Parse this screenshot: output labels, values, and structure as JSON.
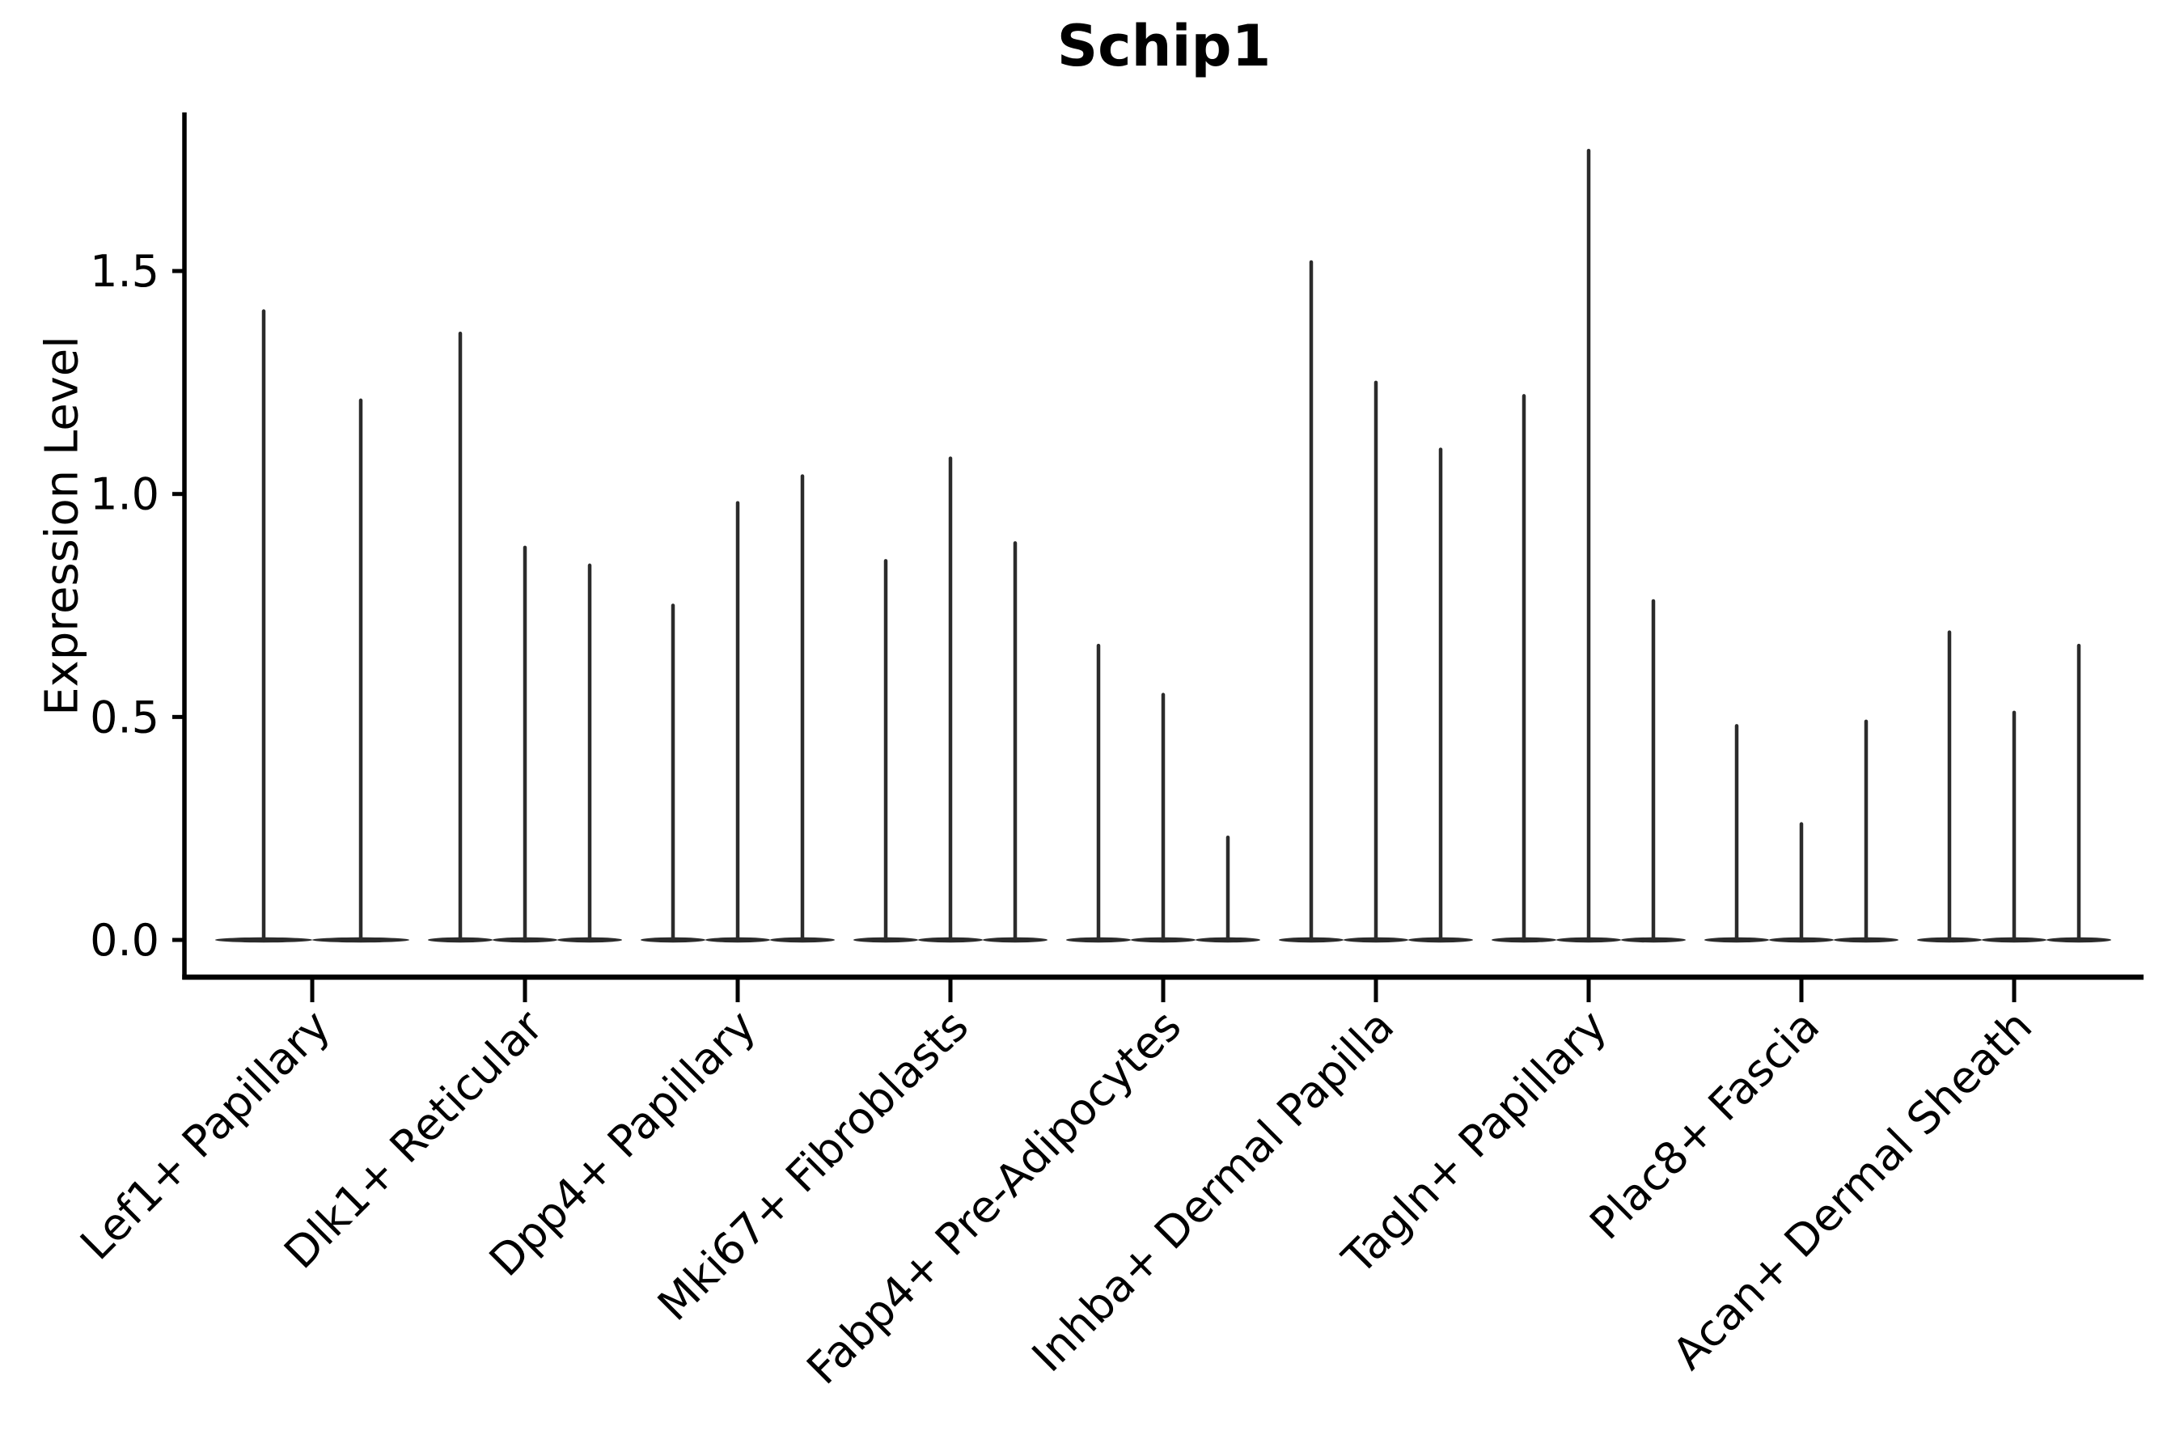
{
  "page": {
    "background": "#ffffff"
  },
  "title": "Schip1",
  "ylabel": "Expression Level",
  "chart_data": {
    "type": "violin",
    "title": "Schip1",
    "xlabel": "",
    "ylabel": "Expression Level",
    "ylim": [
      0,
      1.86
    ],
    "yticks": [
      0.0,
      0.5,
      1.0,
      1.5
    ],
    "x_tick_rotation": 45,
    "grid": false,
    "legend": "none",
    "violin_color": "#2b2b2b",
    "axis_color": "#000000",
    "background": "#ffffff",
    "categories": [
      "Lef1+ Papillary",
      "Dlk1+ Reticular",
      "Dpp4+ Papillary",
      "Mki67+ Fibroblasts",
      "Fabp4+ Pre-Adipocytes",
      "Inhba+ Dermal Papilla",
      "Tagln+ Papillary",
      "Plac8+ Fascia",
      "Acan+ Dermal Sheath"
    ],
    "series": [
      {
        "name": "Lef1+ Papillary",
        "peaks": [
          1.41,
          1.21
        ]
      },
      {
        "name": "Dlk1+ Reticular",
        "peaks": [
          1.36,
          0.88,
          0.84
        ]
      },
      {
        "name": "Dpp4+ Papillary",
        "peaks": [
          0.75,
          0.98,
          1.04
        ]
      },
      {
        "name": "Mki67+ Fibroblasts",
        "peaks": [
          0.85,
          1.08,
          0.89
        ]
      },
      {
        "name": "Fabp4+ Pre-Adipocytes",
        "peaks": [
          0.66,
          0.55,
          0.23
        ]
      },
      {
        "name": "Inhba+ Dermal Papilla",
        "peaks": [
          1.52,
          1.25,
          1.1
        ]
      },
      {
        "name": "Tagln+ Papillary",
        "peaks": [
          1.22,
          1.77,
          0.76
        ]
      },
      {
        "name": "Plac8+ Fascia",
        "peaks": [
          0.48,
          0.26,
          0.49
        ]
      },
      {
        "name": "Acan+ Dermal Sheath",
        "peaks": [
          0.69,
          0.51,
          0.66
        ]
      }
    ]
  }
}
